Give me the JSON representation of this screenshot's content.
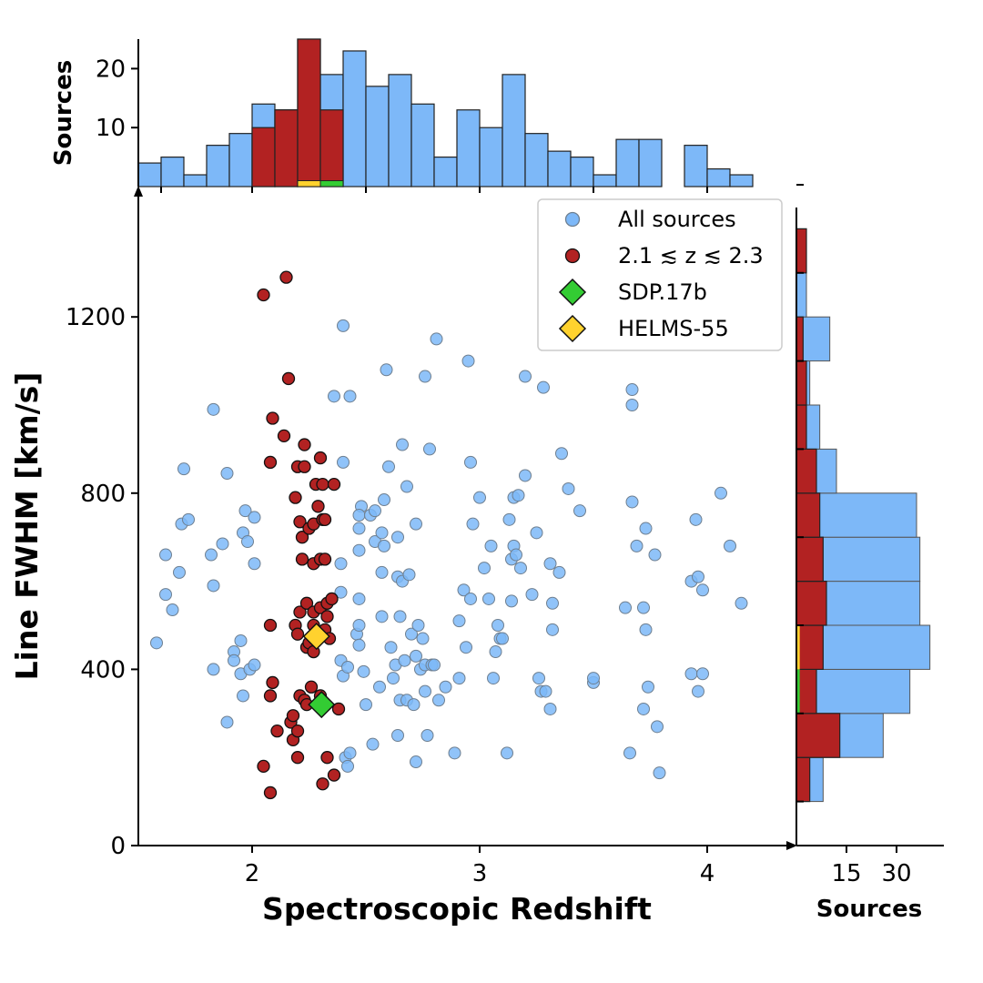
{
  "chart_data": {
    "type": "scatter",
    "xlabel": "Spectroscopic Redshift",
    "ylabel": "Line FWHM [km/s]",
    "top_hist_ylabel": "Sources",
    "right_hist_xlabel": "Sources",
    "xlim": [
      1.5,
      4.3
    ],
    "ylim": [
      0,
      1500
    ],
    "xticks": [
      2,
      3,
      4
    ],
    "yticks": [
      0,
      400,
      800,
      1200
    ],
    "grid": false,
    "legend_position": "top-right",
    "colors": {
      "all_sources": "#7db8f8",
      "subset": "#b22222",
      "sdp17b": "#33cc33",
      "helms55": "#ffd22e"
    },
    "legend": [
      {
        "label": "All sources",
        "marker": "circle",
        "color": "#7db8f8"
      },
      {
        "label": "2.1 ≲ z ≲ 2.3",
        "marker": "circle",
        "color": "#b22222"
      },
      {
        "label": "SDP.17b",
        "marker": "diamond",
        "color": "#33cc33"
      },
      {
        "label": "HELMS-55",
        "marker": "diamond",
        "color": "#ffd22e"
      }
    ],
    "series": [
      {
        "name": "All sources",
        "points": [
          [
            1.58,
            460
          ],
          [
            1.62,
            570
          ],
          [
            1.62,
            660
          ],
          [
            1.65,
            535
          ],
          [
            1.68,
            620
          ],
          [
            1.7,
            855
          ],
          [
            1.69,
            730
          ],
          [
            1.72,
            740
          ],
          [
            1.83,
            400
          ],
          [
            1.82,
            660
          ],
          [
            1.83,
            590
          ],
          [
            1.83,
            990
          ],
          [
            1.87,
            685
          ],
          [
            1.89,
            845
          ],
          [
            1.89,
            280
          ],
          [
            1.92,
            440
          ],
          [
            1.92,
            420
          ],
          [
            1.95,
            390
          ],
          [
            1.95,
            465
          ],
          [
            1.96,
            340
          ],
          [
            1.96,
            710
          ],
          [
            1.97,
            760
          ],
          [
            1.98,
            690
          ],
          [
            1.99,
            400
          ],
          [
            2.01,
            640
          ],
          [
            2.01,
            410
          ],
          [
            2.01,
            745
          ],
          [
            2.36,
            1020
          ],
          [
            2.39,
            640
          ],
          [
            2.39,
            575
          ],
          [
            2.39,
            420
          ],
          [
            2.4,
            385
          ],
          [
            2.4,
            1180
          ],
          [
            2.4,
            870
          ],
          [
            2.41,
            200
          ],
          [
            2.42,
            180
          ],
          [
            2.42,
            405
          ],
          [
            2.43,
            1020
          ],
          [
            2.43,
            210
          ],
          [
            2.46,
            480
          ],
          [
            2.47,
            500
          ],
          [
            2.47,
            670
          ],
          [
            2.47,
            720
          ],
          [
            2.48,
            770
          ],
          [
            2.47,
            750
          ],
          [
            2.47,
            560
          ],
          [
            2.47,
            455
          ],
          [
            2.49,
            395
          ],
          [
            2.5,
            320
          ],
          [
            2.52,
            750
          ],
          [
            2.53,
            230
          ],
          [
            2.54,
            690
          ],
          [
            2.54,
            760
          ],
          [
            2.56,
            360
          ],
          [
            2.57,
            520
          ],
          [
            2.57,
            620
          ],
          [
            2.57,
            710
          ],
          [
            2.58,
            680
          ],
          [
            2.58,
            785
          ],
          [
            2.59,
            1080
          ],
          [
            2.6,
            860
          ],
          [
            2.61,
            450
          ],
          [
            2.62,
            380
          ],
          [
            2.63,
            410
          ],
          [
            2.64,
            250
          ],
          [
            2.64,
            610
          ],
          [
            2.64,
            700
          ],
          [
            2.65,
            520
          ],
          [
            2.65,
            330
          ],
          [
            2.66,
            910
          ],
          [
            2.66,
            600
          ],
          [
            2.67,
            420
          ],
          [
            2.68,
            330
          ],
          [
            2.68,
            815
          ],
          [
            2.69,
            615
          ],
          [
            2.7,
            480
          ],
          [
            2.71,
            320
          ],
          [
            2.72,
            190
          ],
          [
            2.72,
            430
          ],
          [
            2.72,
            730
          ],
          [
            2.73,
            500
          ],
          [
            2.74,
            400
          ],
          [
            2.75,
            470
          ],
          [
            2.76,
            410
          ],
          [
            2.76,
            1065
          ],
          [
            2.76,
            350
          ],
          [
            2.77,
            250
          ],
          [
            2.78,
            900
          ],
          [
            2.79,
            410
          ],
          [
            2.8,
            410
          ],
          [
            2.81,
            1150
          ],
          [
            2.82,
            330
          ],
          [
            2.85,
            360
          ],
          [
            2.89,
            210
          ],
          [
            2.91,
            510
          ],
          [
            2.91,
            380
          ],
          [
            2.93,
            580
          ],
          [
            2.94,
            450
          ],
          [
            2.95,
            1100
          ],
          [
            2.96,
            560
          ],
          [
            2.96,
            870
          ],
          [
            2.97,
            730
          ],
          [
            3.0,
            790
          ],
          [
            3.02,
            630
          ],
          [
            3.04,
            560
          ],
          [
            3.05,
            680
          ],
          [
            3.06,
            380
          ],
          [
            3.07,
            440
          ],
          [
            3.08,
            500
          ],
          [
            3.09,
            470
          ],
          [
            3.1,
            470
          ],
          [
            3.12,
            210
          ],
          [
            3.13,
            740
          ],
          [
            3.14,
            650
          ],
          [
            3.14,
            555
          ],
          [
            3.15,
            680
          ],
          [
            3.15,
            790
          ],
          [
            3.16,
            660
          ],
          [
            3.17,
            795
          ],
          [
            3.18,
            630
          ],
          [
            3.2,
            1065
          ],
          [
            3.2,
            840
          ],
          [
            3.23,
            570
          ],
          [
            3.25,
            710
          ],
          [
            3.26,
            380
          ],
          [
            3.27,
            350
          ],
          [
            3.28,
            1040
          ],
          [
            3.29,
            350
          ],
          [
            3.31,
            310
          ],
          [
            3.31,
            640
          ],
          [
            3.32,
            550
          ],
          [
            3.32,
            490
          ],
          [
            3.35,
            620
          ],
          [
            3.36,
            890
          ],
          [
            3.39,
            810
          ],
          [
            3.44,
            760
          ],
          [
            3.5,
            370
          ],
          [
            3.5,
            380
          ],
          [
            3.64,
            540
          ],
          [
            3.66,
            210
          ],
          [
            3.67,
            780
          ],
          [
            3.67,
            1000
          ],
          [
            3.67,
            1035
          ],
          [
            3.69,
            680
          ],
          [
            3.72,
            540
          ],
          [
            3.72,
            310
          ],
          [
            3.73,
            720
          ],
          [
            3.73,
            490
          ],
          [
            3.74,
            360
          ],
          [
            3.77,
            660
          ],
          [
            3.78,
            270
          ],
          [
            3.79,
            165
          ],
          [
            3.93,
            600
          ],
          [
            3.93,
            390
          ],
          [
            3.95,
            740
          ],
          [
            3.96,
            610
          ],
          [
            3.96,
            350
          ],
          [
            3.98,
            580
          ],
          [
            3.98,
            390
          ],
          [
            4.06,
            800
          ],
          [
            4.1,
            680
          ],
          [
            4.15,
            550
          ]
        ]
      },
      {
        "name": "2.1 ≲ z ≲ 2.3",
        "points": [
          [
            2.05,
            1250
          ],
          [
            2.15,
            1290
          ],
          [
            2.16,
            1060
          ],
          [
            2.05,
            180
          ],
          [
            2.08,
            120
          ],
          [
            2.08,
            500
          ],
          [
            2.08,
            870
          ],
          [
            2.08,
            340
          ],
          [
            2.09,
            370
          ],
          [
            2.09,
            970
          ],
          [
            2.11,
            260
          ],
          [
            2.14,
            930
          ],
          [
            2.17,
            280
          ],
          [
            2.18,
            295
          ],
          [
            2.18,
            240
          ],
          [
            2.19,
            500
          ],
          [
            2.19,
            790
          ],
          [
            2.2,
            200
          ],
          [
            2.2,
            860
          ],
          [
            2.2,
            480
          ],
          [
            2.2,
            260
          ],
          [
            2.21,
            735
          ],
          [
            2.21,
            530
          ],
          [
            2.21,
            340
          ],
          [
            2.22,
            700
          ],
          [
            2.22,
            650
          ],
          [
            2.23,
            860
          ],
          [
            2.23,
            910
          ],
          [
            2.23,
            330
          ],
          [
            2.24,
            550
          ],
          [
            2.24,
            450
          ],
          [
            2.24,
            320
          ],
          [
            2.25,
            720
          ],
          [
            2.25,
            460
          ],
          [
            2.26,
            360
          ],
          [
            2.27,
            730
          ],
          [
            2.27,
            640
          ],
          [
            2.27,
            530
          ],
          [
            2.27,
            440
          ],
          [
            2.27,
            500
          ],
          [
            2.28,
            820
          ],
          [
            2.29,
            770
          ],
          [
            2.3,
            650
          ],
          [
            2.3,
            880
          ],
          [
            2.3,
            340
          ],
          [
            2.3,
            540
          ],
          [
            2.31,
            140
          ],
          [
            2.31,
            820
          ],
          [
            2.31,
            740
          ],
          [
            2.32,
            740
          ],
          [
            2.32,
            650
          ],
          [
            2.32,
            490
          ],
          [
            2.33,
            200
          ],
          [
            2.33,
            550
          ],
          [
            2.33,
            520
          ],
          [
            2.34,
            470
          ],
          [
            2.35,
            560
          ],
          [
            2.36,
            160
          ],
          [
            2.36,
            820
          ],
          [
            2.38,
            310
          ]
        ]
      },
      {
        "name": "SDP.17b",
        "points": [
          [
            2.305,
            320
          ]
        ]
      },
      {
        "name": "HELMS-55",
        "points": [
          [
            2.283,
            475
          ]
        ]
      }
    ],
    "top_histogram": {
      "ylabel": "Sources",
      "yticks": [
        10,
        20
      ],
      "ylim": [
        0,
        25
      ],
      "bin_edges": [
        1.5,
        1.6,
        1.7,
        1.8,
        1.9,
        2.0,
        2.1,
        2.2,
        2.3,
        2.4,
        2.5,
        2.6,
        2.7,
        2.8,
        2.9,
        3.0,
        3.1,
        3.2,
        3.3,
        3.4,
        3.5,
        3.6,
        3.7,
        3.8,
        3.9,
        4.0,
        4.1,
        4.2
      ],
      "all_counts": [
        4,
        5,
        2,
        7,
        9,
        14,
        13,
        25,
        19,
        23,
        17,
        19,
        14,
        5,
        13,
        10,
        19,
        9,
        6,
        5,
        2,
        8,
        8,
        0,
        7,
        3,
        2
      ],
      "subset_counts": [
        0,
        0,
        0,
        0,
        0,
        10,
        13,
        25,
        13,
        0,
        0,
        0,
        0,
        0,
        0,
        0,
        0,
        0,
        0,
        0,
        0,
        0,
        0,
        0,
        0,
        0,
        0
      ],
      "highlight_bins": [
        {
          "name": "HELMS-55",
          "x0": 2.2,
          "x1": 2.3,
          "count": 1
        },
        {
          "name": "SDP.17b",
          "x0": 2.3,
          "x1": 2.4,
          "count": 1
        }
      ]
    },
    "right_histogram": {
      "xlabel": "Sources",
      "xticks": [
        15,
        30
      ],
      "bin_edges": [
        100,
        200,
        300,
        400,
        500,
        600,
        700,
        800,
        900,
        1000,
        1100,
        1200,
        1300,
        1400,
        1500
      ],
      "all_counts": [
        8,
        26,
        34,
        40,
        37,
        37,
        36,
        12,
        7,
        4,
        10,
        3,
        3,
        0
      ],
      "subset_counts": [
        4,
        13,
        6,
        8,
        9,
        8,
        7,
        6,
        3,
        3,
        2,
        0,
        3,
        0
      ],
      "highlight_bins": [
        {
          "name": "SDP.17b",
          "y0": 300,
          "y1": 400,
          "count": 1
        },
        {
          "name": "HELMS-55",
          "y0": 400,
          "y1": 500,
          "count": 1
        }
      ]
    }
  }
}
